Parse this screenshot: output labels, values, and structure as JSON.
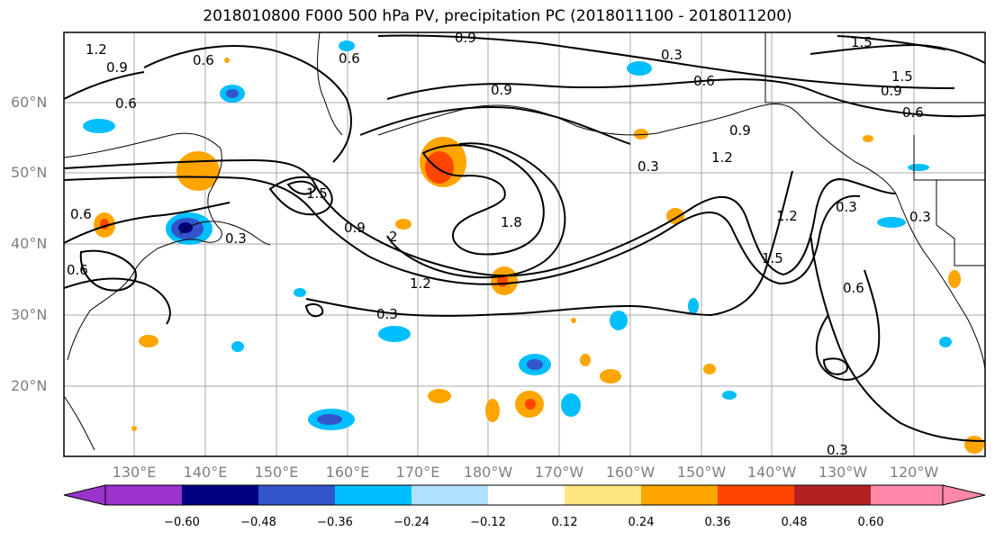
{
  "title": "2018010800 F000 500 hPa PV, precipitation PC (2018011100 - 2018011200)",
  "lat_labels": [
    "60°N",
    "50°N",
    "40°N",
    "30°N",
    "20°N"
  ],
  "lon_labels": [
    "130°E",
    "140°E",
    "150°E",
    "160°E",
    "170°E",
    "180°W",
    "170°W",
    "160°W",
    "150°W",
    "140°W",
    "130°W",
    "120°W"
  ],
  "contour_labels": [
    "1.2",
    "0.9",
    "0.6",
    "0.6",
    "0.6",
    "0.9",
    "0.3",
    "0.6",
    "0.9",
    "1.5",
    "1.5",
    "0.9",
    "0.6",
    "0.9",
    "1.5",
    "1.8",
    "2",
    "0.9",
    "0.3",
    "1.2",
    "0.3",
    "0.3",
    "1.2",
    "1.2",
    "1.5",
    "0.3",
    "0.3",
    "0.6",
    "0.6",
    "0.3",
    "0.6"
  ],
  "colorbar": {
    "ticks": [
      "−0.60",
      "−0.48",
      "−0.36",
      "−0.24",
      "−0.12",
      "0.12",
      "0.24",
      "0.36",
      "0.48",
      "0.60"
    ],
    "colors": [
      "#9933cc",
      "#000080",
      "#3355cc",
      "#00bfff",
      "#b0e0ff",
      "#ffffff",
      "#ffe680",
      "#ffa500",
      "#ff4500",
      "#b22222",
      "#ff88aa"
    ]
  },
  "colors": {
    "contour": "#000000",
    "grid": "#aaaaaa",
    "coast": "#000000"
  }
}
